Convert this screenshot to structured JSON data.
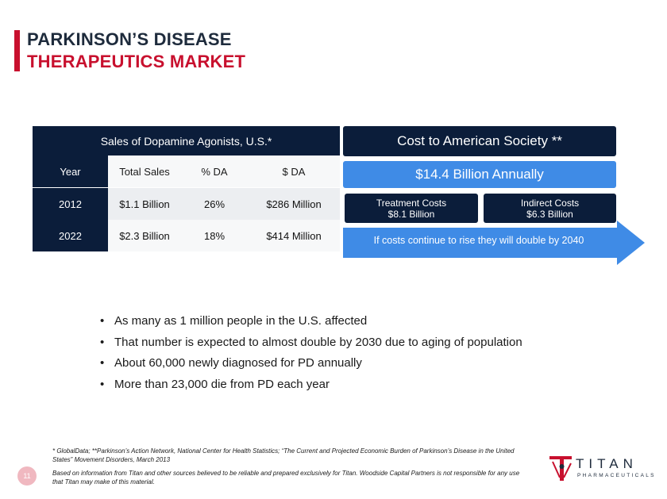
{
  "title": {
    "line1": "PARKINSON’S DISEASE",
    "line2": "THERAPEUTICS MARKET"
  },
  "colors": {
    "accent": "#c8102e",
    "navy": "#0b1d3a",
    "blue": "#3f8be6"
  },
  "sales_table": {
    "heading": "Sales of Dopamine Agonists, U.S.*",
    "columns": [
      "Year",
      "Total Sales",
      "% DA",
      "$ DA"
    ],
    "rows": [
      [
        "2012",
        "$1.1 Billion",
        "26%",
        "$286 Million"
      ],
      [
        "2022",
        "$2.3 Billion",
        "18%",
        "$414 Million"
      ]
    ]
  },
  "cost": {
    "heading": "Cost to American Society **",
    "annual": "$14.4 Billion Annually",
    "treatment_label": "Treatment Costs",
    "treatment_value": "$8.1 Billion",
    "indirect_label": "Indirect Costs",
    "indirect_value": "$6.3 Billion",
    "projection": "If costs continue to rise they will double by 2040"
  },
  "bullets": [
    "As many as 1 million people in the U.S. affected",
    "That number is expected to almost double by 2030 due to aging of population",
    "About 60,000 newly diagnosed for PD annually",
    "More than 23,000 die from PD each year"
  ],
  "footnotes": {
    "sources": "* GlobalData; **Parkinson’s Action Network, National Center for Health Statistics; “The Current and Projected Economic Burden of Parkinson’s Disease in the United States” Movement Disorders, March 2013",
    "disclaimer": "Based on information from Titan and other sources believed to be reliable and prepared exclusively for Titan. Woodside Capital Partners is not responsible for any use that Titan may make of this material."
  },
  "page_number": "11",
  "logo": {
    "name": "TITAN",
    "tagline": "PHARMACEUTICALS",
    "icon": "titan-logo-icon"
  }
}
